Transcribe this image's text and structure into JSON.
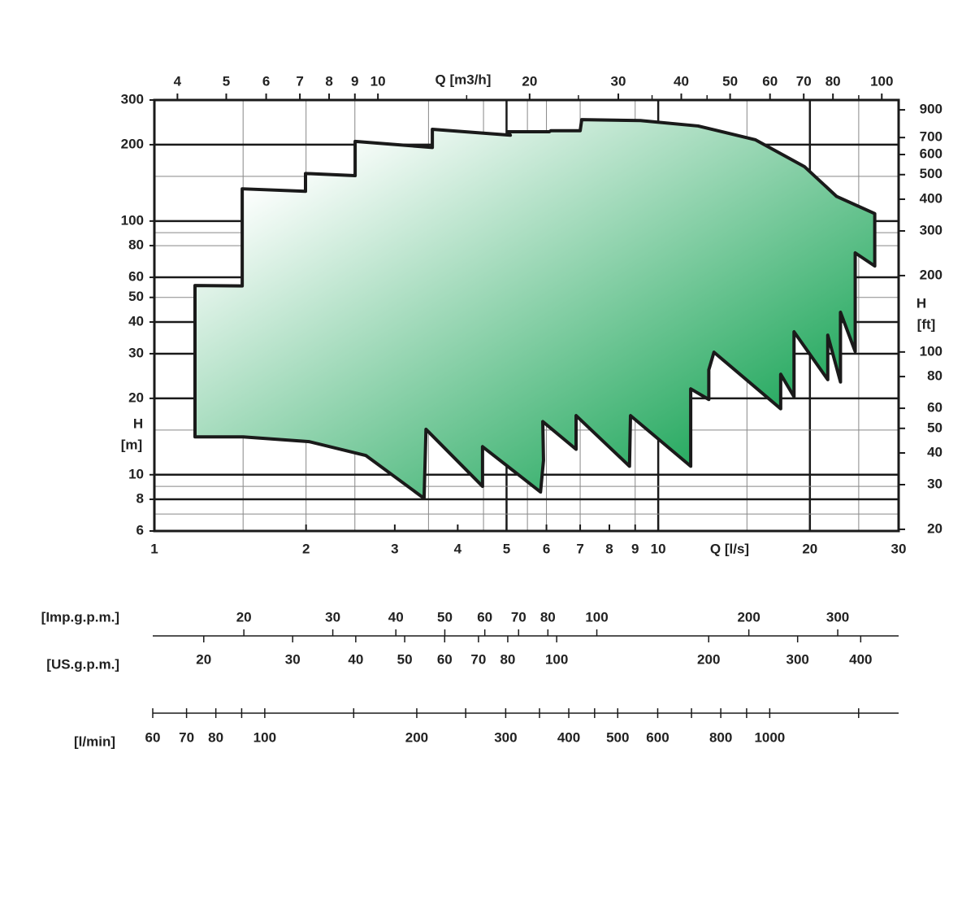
{
  "chart_data": {
    "type": "area",
    "xlabel": "Q  [l/s]",
    "x2label": "Q  [m3/h]",
    "ylabel": "H",
    "ylabel_unit": "[m]",
    "y2label": "H",
    "y2label_unit": "[ft]",
    "log_x": true,
    "log_y": true,
    "xlim": [
      1,
      30
    ],
    "xticks": [
      1,
      2,
      3,
      4,
      5,
      6,
      7,
      8,
      9,
      10,
      20,
      30
    ],
    "x2lim": [
      3.6,
      108
    ],
    "x2ticks": [
      4,
      5,
      6,
      7,
      8,
      9,
      10,
      20,
      30,
      40,
      50,
      60,
      70,
      80,
      100
    ],
    "x2minor": [
      15,
      25,
      35,
      45,
      90
    ],
    "ylim": [
      6,
      300
    ],
    "yticks": [
      6,
      8,
      10,
      20,
      30,
      40,
      50,
      60,
      80,
      100,
      200,
      300
    ],
    "y2lim": [
      19.7,
      984
    ],
    "y2ticks": [
      20,
      30,
      40,
      50,
      60,
      80,
      100,
      200,
      300,
      400,
      500,
      600,
      700,
      900
    ],
    "xgrid_major": [
      5,
      10,
      20
    ],
    "xgrid_minor": [
      1.5,
      2,
      2.5,
      3.5,
      4.5,
      5.5,
      6,
      7,
      9,
      15,
      25
    ],
    "ygrid_major": [
      8,
      10,
      20,
      30,
      40,
      60,
      100,
      200
    ],
    "ygrid_minor": [
      7,
      9,
      15,
      50,
      80,
      90,
      150
    ],
    "series": [
      {
        "color": "#009a44",
        "x": [
          1.204,
          1.204,
          1.494,
          1.494,
          1.995,
          1.995,
          2.503,
          2.503,
          3.562,
          3.562,
          5.088,
          5.03,
          6.08,
          6.12,
          7.0,
          7.05,
          9.22,
          12.0,
          15.6,
          19.5,
          22.6,
          26.9,
          26.9,
          24.6,
          24.6,
          23.0,
          23.0,
          21.7,
          21.7,
          18.6,
          18.6,
          17.5,
          17.5,
          12.9,
          12.6,
          12.6,
          11.6,
          11.6,
          8.81,
          8.77,
          6.87,
          6.87,
          5.9,
          5.92,
          5.84,
          4.48,
          4.48,
          3.46,
          3.43,
          2.63,
          2.03,
          1.5
        ],
        "values": [
          14.1,
          55.7,
          55.5,
          134,
          131,
          154,
          151,
          206,
          195,
          230,
          218,
          225,
          225,
          227,
          227,
          251,
          249,
          237,
          209,
          164,
          125,
          107,
          66.5,
          74.9,
          30.6,
          43.7,
          23.2,
          35.5,
          23.7,
          36.6,
          20.3,
          24.9,
          18.2,
          30.4,
          25.9,
          19.8,
          21.8,
          10.8,
          17.1,
          10.8,
          17.1,
          12.6,
          16.2,
          11.4,
          8.55,
          12.9,
          9.0,
          15.1,
          8.07,
          11.9,
          13.5,
          14.1
        ]
      }
    ],
    "scales": [
      {
        "label": "[Imp.g.p.m.]",
        "lim": [
          13.2,
          396
        ],
        "ticks": [
          20,
          30,
          40,
          50,
          60,
          70,
          80,
          100,
          200,
          300
        ]
      },
      {
        "label": "[US.g.p.m.]",
        "lim": [
          15.85,
          475.5
        ],
        "ticks": [
          20,
          30,
          40,
          50,
          60,
          70,
          80,
          100,
          200,
          300,
          400
        ]
      },
      {
        "label": "[l/min]",
        "lim": [
          60,
          1800
        ],
        "ticks": [
          60,
          70,
          80,
          100,
          200,
          300,
          400,
          500,
          600,
          800,
          1000
        ],
        "minor": [
          90,
          150,
          250,
          350,
          450,
          700,
          900,
          1500
        ]
      }
    ]
  }
}
